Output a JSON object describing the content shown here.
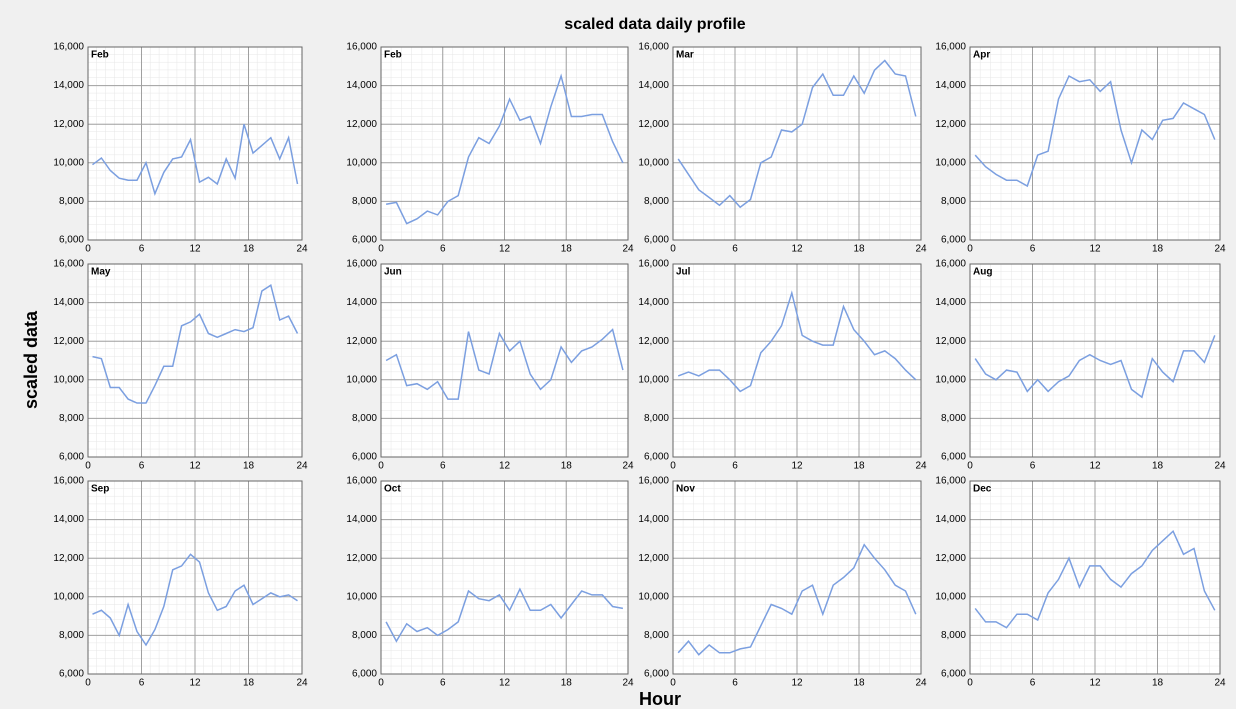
{
  "title": "scaled data daily profile",
  "xlabel": "Hour",
  "ylabel": "scaled data",
  "chart_data": [
    {
      "type": "line",
      "title": "Feb",
      "color": "#7b9fe0",
      "grid": true,
      "minor_grid": true,
      "xlim": [
        0,
        24
      ],
      "ylim": [
        6000,
        16000
      ],
      "xticks": [
        0,
        6,
        12,
        18,
        24
      ],
      "yticks": [
        {
          "value": 6000,
          "label": "6,000"
        },
        {
          "value": 8000,
          "label": "8,000"
        },
        {
          "value": 10000,
          "label": "10,000"
        },
        {
          "value": 12000,
          "label": "12,000"
        },
        {
          "value": 14000,
          "label": "14,000"
        },
        {
          "value": 16000,
          "label": "16,000"
        }
      ],
      "x": [
        0.5,
        1.5,
        2.5,
        3.5,
        4.5,
        5.5,
        6.5,
        7.5,
        8.5,
        9.5,
        10.5,
        11.5,
        12.5,
        13.5,
        14.5,
        15.5,
        16.5,
        17.5,
        18.5,
        19.5,
        20.5,
        21.5,
        22.5,
        23.5
      ],
      "values": [
        9900,
        10250,
        9600,
        9200,
        9100,
        9100,
        10000,
        8400,
        9500,
        10200,
        10300,
        11200,
        9000,
        9250,
        8900,
        10200,
        9200,
        12000,
        10500,
        10900,
        11300,
        10200,
        11300,
        8900
      ]
    },
    {
      "type": "line",
      "title": "Feb",
      "color": "#7b9fe0",
      "grid": true,
      "minor_grid": true,
      "xlim": [
        0,
        24
      ],
      "ylim": [
        6000,
        16000
      ],
      "xticks": [
        0,
        6,
        12,
        18,
        24
      ],
      "yticks": [
        {
          "value": 6000,
          "label": "6,000"
        },
        {
          "value": 8000,
          "label": "8,000"
        },
        {
          "value": 10000,
          "label": "10,000"
        },
        {
          "value": 12000,
          "label": "12,000"
        },
        {
          "value": 14000,
          "label": "14,000"
        },
        {
          "value": 16000,
          "label": "16,000"
        }
      ],
      "x": [
        0.5,
        1.5,
        2.5,
        3.5,
        4.5,
        5.5,
        6.5,
        7.5,
        8.5,
        9.5,
        10.5,
        11.5,
        12.5,
        13.5,
        14.5,
        15.5,
        16.5,
        17.5,
        18.5,
        19.5,
        20.5,
        21.5,
        22.5,
        23.5
      ],
      "values": [
        7850,
        7950,
        6850,
        7100,
        7500,
        7300,
        8000,
        8300,
        10300,
        11300,
        11000,
        11900,
        13300,
        12200,
        12400,
        11000,
        12900,
        14500,
        12400,
        12400,
        12500,
        12500,
        11100,
        10000
      ]
    },
    {
      "type": "line",
      "title": "Mar",
      "color": "#7b9fe0",
      "grid": true,
      "minor_grid": true,
      "xlim": [
        0,
        24
      ],
      "ylim": [
        6000,
        16000
      ],
      "xticks": [
        0,
        6,
        12,
        18,
        24
      ],
      "yticks": [
        {
          "value": 6000,
          "label": "6,000"
        },
        {
          "value": 8000,
          "label": "8,000"
        },
        {
          "value": 10000,
          "label": "10,000"
        },
        {
          "value": 12000,
          "label": "12,000"
        },
        {
          "value": 14000,
          "label": "14,000"
        },
        {
          "value": 16000,
          "label": "16,000"
        }
      ],
      "x": [
        0.5,
        1.5,
        2.5,
        3.5,
        4.5,
        5.5,
        6.5,
        7.5,
        8.5,
        9.5,
        10.5,
        11.5,
        12.5,
        13.5,
        14.5,
        15.5,
        16.5,
        17.5,
        18.5,
        19.5,
        20.5,
        21.5,
        22.5,
        23.5
      ],
      "values": [
        10200,
        9400,
        8600,
        8200,
        7800,
        8300,
        7700,
        8100,
        10000,
        10300,
        11700,
        11600,
        12000,
        13900,
        14600,
        13500,
        13500,
        14500,
        13600,
        14800,
        15300,
        14600,
        14500,
        12400
      ]
    },
    {
      "type": "line",
      "title": "Apr",
      "color": "#7b9fe0",
      "grid": true,
      "minor_grid": true,
      "xlim": [
        0,
        24
      ],
      "ylim": [
        6000,
        16000
      ],
      "xticks": [
        0,
        6,
        12,
        18,
        24
      ],
      "yticks": [
        {
          "value": 6000,
          "label": "6,000"
        },
        {
          "value": 8000,
          "label": "8,000"
        },
        {
          "value": 10000,
          "label": "10,000"
        },
        {
          "value": 12000,
          "label": "12,000"
        },
        {
          "value": 14000,
          "label": "14,000"
        },
        {
          "value": 16000,
          "label": "16,000"
        }
      ],
      "x": [
        0.5,
        1.5,
        2.5,
        3.5,
        4.5,
        5.5,
        6.5,
        7.5,
        8.5,
        9.5,
        10.5,
        11.5,
        12.5,
        13.5,
        14.5,
        15.5,
        16.5,
        17.5,
        18.5,
        19.5,
        20.5,
        21.5,
        22.5,
        23.5
      ],
      "values": [
        10400,
        9800,
        9400,
        9100,
        9100,
        8800,
        10400,
        10600,
        13300,
        14500,
        14200,
        14300,
        13700,
        14200,
        11700,
        10000,
        11700,
        11200,
        12200,
        12300,
        13100,
        12800,
        12500,
        11200
      ]
    },
    {
      "type": "line",
      "title": "May",
      "color": "#7b9fe0",
      "grid": true,
      "minor_grid": true,
      "xlim": [
        0,
        24
      ],
      "ylim": [
        6000,
        16000
      ],
      "xticks": [
        0,
        6,
        12,
        18,
        24
      ],
      "yticks": [
        {
          "value": 6000,
          "label": "6,000"
        },
        {
          "value": 8000,
          "label": "8,000"
        },
        {
          "value": 10000,
          "label": "10,000"
        },
        {
          "value": 12000,
          "label": "12,000"
        },
        {
          "value": 14000,
          "label": "14,000"
        },
        {
          "value": 16000,
          "label": "16,000"
        }
      ],
      "x": [
        0.5,
        1.5,
        2.5,
        3.5,
        4.5,
        5.5,
        6.5,
        7.5,
        8.5,
        9.5,
        10.5,
        11.5,
        12.5,
        13.5,
        14.5,
        15.5,
        16.5,
        17.5,
        18.5,
        19.5,
        20.5,
        21.5,
        22.5,
        23.5
      ],
      "values": [
        11200,
        11100,
        9600,
        9600,
        9000,
        8800,
        8800,
        9700,
        10700,
        10700,
        12800,
        13000,
        13400,
        12400,
        12200,
        12400,
        12600,
        12500,
        12700,
        14600,
        14900,
        13100,
        13300,
        12400
      ]
    },
    {
      "type": "line",
      "title": "Jun",
      "color": "#7b9fe0",
      "grid": true,
      "minor_grid": true,
      "xlim": [
        0,
        24
      ],
      "ylim": [
        6000,
        16000
      ],
      "xticks": [
        0,
        6,
        12,
        18,
        24
      ],
      "yticks": [
        {
          "value": 6000,
          "label": "6,000"
        },
        {
          "value": 8000,
          "label": "8,000"
        },
        {
          "value": 10000,
          "label": "10,000"
        },
        {
          "value": 12000,
          "label": "12,000"
        },
        {
          "value": 14000,
          "label": "14,000"
        },
        {
          "value": 16000,
          "label": "16,000"
        }
      ],
      "x": [
        0.5,
        1.5,
        2.5,
        3.5,
        4.5,
        5.5,
        6.5,
        7.5,
        8.5,
        9.5,
        10.5,
        11.5,
        12.5,
        13.5,
        14.5,
        15.5,
        16.5,
        17.5,
        18.5,
        19.5,
        20.5,
        21.5,
        22.5,
        23.5
      ],
      "values": [
        11000,
        11300,
        9700,
        9800,
        9500,
        9900,
        9000,
        9000,
        12500,
        10500,
        10300,
        12400,
        11500,
        12000,
        10300,
        9500,
        10000,
        11700,
        10900,
        11500,
        11700,
        12100,
        12600,
        10500
      ]
    },
    {
      "type": "line",
      "title": "Jul",
      "color": "#7b9fe0",
      "grid": true,
      "minor_grid": true,
      "xlim": [
        0,
        24
      ],
      "ylim": [
        6000,
        16000
      ],
      "xticks": [
        0,
        6,
        12,
        18,
        24
      ],
      "yticks": [
        {
          "value": 6000,
          "label": "6,000"
        },
        {
          "value": 8000,
          "label": "8,000"
        },
        {
          "value": 10000,
          "label": "10,000"
        },
        {
          "value": 12000,
          "label": "12,000"
        },
        {
          "value": 14000,
          "label": "14,000"
        },
        {
          "value": 16000,
          "label": "16,000"
        }
      ],
      "x": [
        0.5,
        1.5,
        2.5,
        3.5,
        4.5,
        5.5,
        6.5,
        7.5,
        8.5,
        9.5,
        10.5,
        11.5,
        12.5,
        13.5,
        14.5,
        15.5,
        16.5,
        17.5,
        18.5,
        19.5,
        20.5,
        21.5,
        22.5,
        23.5
      ],
      "values": [
        10200,
        10400,
        10200,
        10500,
        10500,
        10000,
        9400,
        9700,
        11400,
        12000,
        12800,
        14500,
        12300,
        12000,
        11800,
        11800,
        13800,
        12600,
        12000,
        11300,
        11500,
        11100,
        10500,
        10000
      ]
    },
    {
      "type": "line",
      "title": "Aug",
      "color": "#7b9fe0",
      "grid": true,
      "minor_grid": true,
      "xlim": [
        0,
        24
      ],
      "ylim": [
        6000,
        16000
      ],
      "xticks": [
        0,
        6,
        12,
        18,
        24
      ],
      "yticks": [
        {
          "value": 6000,
          "label": "6,000"
        },
        {
          "value": 8000,
          "label": "8,000"
        },
        {
          "value": 10000,
          "label": "10,000"
        },
        {
          "value": 12000,
          "label": "12,000"
        },
        {
          "value": 14000,
          "label": "14,000"
        },
        {
          "value": 16000,
          "label": "16,000"
        }
      ],
      "x": [
        0.5,
        1.5,
        2.5,
        3.5,
        4.5,
        5.5,
        6.5,
        7.5,
        8.5,
        9.5,
        10.5,
        11.5,
        12.5,
        13.5,
        14.5,
        15.5,
        16.5,
        17.5,
        18.5,
        19.5,
        20.5,
        21.5,
        22.5,
        23.5
      ],
      "values": [
        11100,
        10300,
        10000,
        10500,
        10400,
        9400,
        10000,
        9400,
        9900,
        10200,
        11000,
        11300,
        11000,
        10800,
        11000,
        9500,
        9100,
        11100,
        10400,
        9900,
        11500,
        11500,
        10900,
        12300
      ]
    },
    {
      "type": "line",
      "title": "Sep",
      "color": "#7b9fe0",
      "grid": true,
      "minor_grid": true,
      "xlim": [
        0,
        24
      ],
      "ylim": [
        6000,
        16000
      ],
      "xticks": [
        0,
        6,
        12,
        18,
        24
      ],
      "yticks": [
        {
          "value": 6000,
          "label": "6,000"
        },
        {
          "value": 8000,
          "label": "8,000"
        },
        {
          "value": 10000,
          "label": "10,000"
        },
        {
          "value": 12000,
          "label": "12,000"
        },
        {
          "value": 14000,
          "label": "14,000"
        },
        {
          "value": 16000,
          "label": "16,000"
        }
      ],
      "x": [
        0.5,
        1.5,
        2.5,
        3.5,
        4.5,
        5.5,
        6.5,
        7.5,
        8.5,
        9.5,
        10.5,
        11.5,
        12.5,
        13.5,
        14.5,
        15.5,
        16.5,
        17.5,
        18.5,
        19.5,
        20.5,
        21.5,
        22.5,
        23.5
      ],
      "values": [
        9100,
        9300,
        8900,
        8000,
        9600,
        8200,
        7500,
        8300,
        9500,
        11400,
        11600,
        12200,
        11800,
        10200,
        9300,
        9500,
        10300,
        10600,
        9600,
        9900,
        10200,
        10000,
        10100,
        9800
      ]
    },
    {
      "type": "line",
      "title": "Oct",
      "color": "#7b9fe0",
      "grid": true,
      "minor_grid": true,
      "xlim": [
        0,
        24
      ],
      "ylim": [
        6000,
        16000
      ],
      "xticks": [
        0,
        6,
        12,
        18,
        24
      ],
      "yticks": [
        {
          "value": 6000,
          "label": "6,000"
        },
        {
          "value": 8000,
          "label": "8,000"
        },
        {
          "value": 10000,
          "label": "10,000"
        },
        {
          "value": 12000,
          "label": "12,000"
        },
        {
          "value": 14000,
          "label": "14,000"
        },
        {
          "value": 16000,
          "label": "16,000"
        }
      ],
      "x": [
        0.5,
        1.5,
        2.5,
        3.5,
        4.5,
        5.5,
        6.5,
        7.5,
        8.5,
        9.5,
        10.5,
        11.5,
        12.5,
        13.5,
        14.5,
        15.5,
        16.5,
        17.5,
        18.5,
        19.5,
        20.5,
        21.5,
        22.5,
        23.5
      ],
      "values": [
        8700,
        7700,
        8600,
        8200,
        8400,
        8000,
        8300,
        8700,
        10300,
        9900,
        9800,
        10100,
        9300,
        10400,
        9300,
        9300,
        9600,
        8900,
        9600,
        10300,
        10100,
        10100,
        9500,
        9400
      ]
    },
    {
      "type": "line",
      "title": "Nov",
      "color": "#7b9fe0",
      "grid": true,
      "minor_grid": true,
      "xlim": [
        0,
        24
      ],
      "ylim": [
        6000,
        16000
      ],
      "xticks": [
        0,
        6,
        12,
        18,
        24
      ],
      "yticks": [
        {
          "value": 6000,
          "label": "6,000"
        },
        {
          "value": 8000,
          "label": "8,000"
        },
        {
          "value": 10000,
          "label": "10,000"
        },
        {
          "value": 12000,
          "label": "12,000"
        },
        {
          "value": 14000,
          "label": "14,000"
        },
        {
          "value": 16000,
          "label": "16,000"
        }
      ],
      "x": [
        0.5,
        1.5,
        2.5,
        3.5,
        4.5,
        5.5,
        6.5,
        7.5,
        8.5,
        9.5,
        10.5,
        11.5,
        12.5,
        13.5,
        14.5,
        15.5,
        16.5,
        17.5,
        18.5,
        19.5,
        20.5,
        21.5,
        22.5,
        23.5
      ],
      "values": [
        7100,
        7700,
        7000,
        7500,
        7100,
        7100,
        7300,
        7400,
        8500,
        9600,
        9400,
        9100,
        10300,
        10600,
        9100,
        10600,
        11000,
        11500,
        12700,
        12000,
        11400,
        10600,
        10300,
        9100
      ]
    },
    {
      "type": "line",
      "title": "Dec",
      "color": "#7b9fe0",
      "grid": true,
      "minor_grid": true,
      "xlim": [
        0,
        24
      ],
      "ylim": [
        6000,
        16000
      ],
      "xticks": [
        0,
        6,
        12,
        18,
        24
      ],
      "yticks": [
        {
          "value": 6000,
          "label": "6,000"
        },
        {
          "value": 8000,
          "label": "8,000"
        },
        {
          "value": 10000,
          "label": "10,000"
        },
        {
          "value": 12000,
          "label": "12,000"
        },
        {
          "value": 14000,
          "label": "14,000"
        },
        {
          "value": 16000,
          "label": "16,000"
        }
      ],
      "x": [
        0.5,
        1.5,
        2.5,
        3.5,
        4.5,
        5.5,
        6.5,
        7.5,
        8.5,
        9.5,
        10.5,
        11.5,
        12.5,
        13.5,
        14.5,
        15.5,
        16.5,
        17.5,
        18.5,
        19.5,
        20.5,
        21.5,
        22.5,
        23.5
      ],
      "values": [
        9400,
        8700,
        8700,
        8400,
        9100,
        9100,
        8800,
        10200,
        10900,
        12000,
        10500,
        11600,
        11600,
        10900,
        10500,
        11200,
        11600,
        12400,
        12900,
        13400,
        12200,
        12500,
        10300,
        9300
      ]
    }
  ]
}
